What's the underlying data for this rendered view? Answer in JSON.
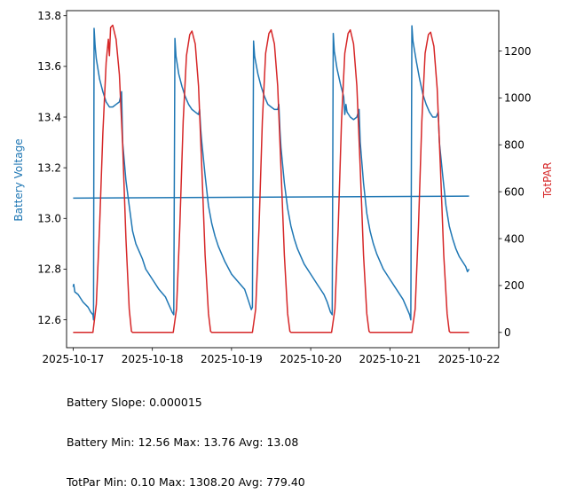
{
  "chart_data": {
    "type": "line",
    "x_axis": {
      "ticks": [
        "2025-10-17",
        "2025-10-18",
        "2025-10-19",
        "2025-10-20",
        "2025-10-21",
        "2025-10-22"
      ],
      "xlim": [
        "2025-10-16T22:00",
        "2025-10-22T09:00"
      ]
    },
    "y_left": {
      "label": "Battery Voltage",
      "color": "#1f77b4",
      "ylim": [
        12.49,
        13.82
      ],
      "ticks": [
        12.6,
        12.8,
        13.0,
        13.2,
        13.4,
        13.6,
        13.8
      ]
    },
    "y_right": {
      "label": "TotPAR",
      "color": "#d62728",
      "ylim": [
        -65,
        1372
      ],
      "ticks": [
        0,
        200,
        400,
        600,
        800,
        1000,
        1200
      ]
    },
    "battery_series": {
      "axis": "left",
      "color": "#1f77b4",
      "points": [
        [
          "2025-10-17T00:00",
          12.73
        ],
        [
          "2025-10-17T00:10",
          12.74
        ],
        [
          "2025-10-17T00:30",
          12.71
        ],
        [
          "2025-10-17T01:30",
          12.7
        ],
        [
          "2025-10-17T03:00",
          12.67
        ],
        [
          "2025-10-17T04:30",
          12.65
        ],
        [
          "2025-10-17T05:20",
          12.63
        ],
        [
          "2025-10-17T06:00",
          12.62
        ],
        [
          "2025-10-17T06:10",
          12.6
        ],
        [
          "2025-10-17T06:20",
          13.75
        ],
        [
          "2025-10-17T06:40",
          13.68
        ],
        [
          "2025-10-17T07:00",
          13.63
        ],
        [
          "2025-10-17T08:00",
          13.55
        ],
        [
          "2025-10-17T09:00",
          13.5
        ],
        [
          "2025-10-17T10:00",
          13.46
        ],
        [
          "2025-10-17T11:00",
          13.44
        ],
        [
          "2025-10-17T12:00",
          13.44
        ],
        [
          "2025-10-17T13:00",
          13.45
        ],
        [
          "2025-10-17T14:00",
          13.46
        ],
        [
          "2025-10-17T14:40",
          13.5
        ],
        [
          "2025-10-17T15:00",
          13.3
        ],
        [
          "2025-10-17T16:00",
          13.15
        ],
        [
          "2025-10-17T17:00",
          13.05
        ],
        [
          "2025-10-17T18:00",
          12.95
        ],
        [
          "2025-10-17T19:00",
          12.9
        ],
        [
          "2025-10-17T20:00",
          12.87
        ],
        [
          "2025-10-17T21:00",
          12.84
        ],
        [
          "2025-10-17T22:00",
          12.8
        ],
        [
          "2025-10-18T00:00",
          12.76
        ],
        [
          "2025-10-18T02:00",
          12.72
        ],
        [
          "2025-10-18T04:00",
          12.69
        ],
        [
          "2025-10-18T05:00",
          12.66
        ],
        [
          "2025-10-18T06:00",
          12.63
        ],
        [
          "2025-10-18T06:30",
          12.62
        ],
        [
          "2025-10-18T06:50",
          13.71
        ],
        [
          "2025-10-18T07:10",
          13.64
        ],
        [
          "2025-10-18T08:00",
          13.57
        ],
        [
          "2025-10-18T09:00",
          13.52
        ],
        [
          "2025-10-18T10:00",
          13.48
        ],
        [
          "2025-10-18T11:00",
          13.45
        ],
        [
          "2025-10-18T12:00",
          13.43
        ],
        [
          "2025-10-18T13:00",
          13.42
        ],
        [
          "2025-10-18T14:00",
          13.41
        ],
        [
          "2025-10-18T14:20",
          13.43
        ],
        [
          "2025-10-18T14:40",
          13.35
        ],
        [
          "2025-10-18T15:00",
          13.3
        ],
        [
          "2025-10-18T16:00",
          13.17
        ],
        [
          "2025-10-18T17:00",
          13.05
        ],
        [
          "2025-10-18T18:00",
          12.98
        ],
        [
          "2025-10-18T19:00",
          12.93
        ],
        [
          "2025-10-18T20:00",
          12.89
        ],
        [
          "2025-10-18T22:00",
          12.83
        ],
        [
          "2025-10-19T00:00",
          12.78
        ],
        [
          "2025-10-19T02:00",
          12.75
        ],
        [
          "2025-10-19T04:00",
          12.72
        ],
        [
          "2025-10-19T05:00",
          12.68
        ],
        [
          "2025-10-19T06:00",
          12.64
        ],
        [
          "2025-10-19T06:20",
          12.65
        ],
        [
          "2025-10-19T06:40",
          13.7
        ],
        [
          "2025-10-19T07:00",
          13.64
        ],
        [
          "2025-10-19T08:00",
          13.57
        ],
        [
          "2025-10-19T09:00",
          13.52
        ],
        [
          "2025-10-19T10:00",
          13.48
        ],
        [
          "2025-10-19T11:00",
          13.45
        ],
        [
          "2025-10-19T12:00",
          13.44
        ],
        [
          "2025-10-19T13:00",
          13.43
        ],
        [
          "2025-10-19T14:00",
          13.43
        ],
        [
          "2025-10-19T14:20",
          13.45
        ],
        [
          "2025-10-19T14:40",
          13.35
        ],
        [
          "2025-10-19T15:00",
          13.28
        ],
        [
          "2025-10-19T16:00",
          13.14
        ],
        [
          "2025-10-19T17:00",
          13.04
        ],
        [
          "2025-10-19T18:00",
          12.97
        ],
        [
          "2025-10-19T19:00",
          12.92
        ],
        [
          "2025-10-19T20:00",
          12.88
        ],
        [
          "2025-10-19T22:00",
          12.82
        ],
        [
          "2025-10-20T00:00",
          12.78
        ],
        [
          "2025-10-20T02:00",
          12.74
        ],
        [
          "2025-10-20T04:00",
          12.7
        ],
        [
          "2025-10-20T05:00",
          12.67
        ],
        [
          "2025-10-20T06:00",
          12.63
        ],
        [
          "2025-10-20T06:30",
          12.62
        ],
        [
          "2025-10-20T06:50",
          13.73
        ],
        [
          "2025-10-20T07:10",
          13.66
        ],
        [
          "2025-10-20T08:00",
          13.59
        ],
        [
          "2025-10-20T09:00",
          13.53
        ],
        [
          "2025-10-20T10:00",
          13.48
        ],
        [
          "2025-10-20T10:20",
          13.41
        ],
        [
          "2025-10-20T10:40",
          13.45
        ],
        [
          "2025-10-20T11:00",
          13.42
        ],
        [
          "2025-10-20T12:00",
          13.4
        ],
        [
          "2025-10-20T13:00",
          13.39
        ],
        [
          "2025-10-20T14:00",
          13.4
        ],
        [
          "2025-10-20T14:40",
          13.43
        ],
        [
          "2025-10-20T15:00",
          13.3
        ],
        [
          "2025-10-20T16:00",
          13.14
        ],
        [
          "2025-10-20T17:00",
          13.02
        ],
        [
          "2025-10-20T18:00",
          12.95
        ],
        [
          "2025-10-20T19:00",
          12.9
        ],
        [
          "2025-10-20T20:00",
          12.86
        ],
        [
          "2025-10-20T22:00",
          12.8
        ],
        [
          "2025-10-21T00:00",
          12.76
        ],
        [
          "2025-10-21T02:00",
          12.72
        ],
        [
          "2025-10-21T04:00",
          12.68
        ],
        [
          "2025-10-21T05:00",
          12.65
        ],
        [
          "2025-10-21T06:00",
          12.62
        ],
        [
          "2025-10-21T06:20",
          12.6
        ],
        [
          "2025-10-21T06:40",
          13.76
        ],
        [
          "2025-10-21T07:00",
          13.7
        ],
        [
          "2025-10-21T08:00",
          13.62
        ],
        [
          "2025-10-21T09:00",
          13.55
        ],
        [
          "2025-10-21T10:00",
          13.49
        ],
        [
          "2025-10-21T11:00",
          13.45
        ],
        [
          "2025-10-21T12:00",
          13.42
        ],
        [
          "2025-10-21T13:00",
          13.4
        ],
        [
          "2025-10-21T14:00",
          13.4
        ],
        [
          "2025-10-21T14:40",
          13.42
        ],
        [
          "2025-10-21T15:00",
          13.3
        ],
        [
          "2025-10-21T16:00",
          13.17
        ],
        [
          "2025-10-21T17:00",
          13.05
        ],
        [
          "2025-10-21T18:00",
          12.97
        ],
        [
          "2025-10-21T19:00",
          12.92
        ],
        [
          "2025-10-21T20:00",
          12.88
        ],
        [
          "2025-10-21T21:00",
          12.85
        ],
        [
          "2025-10-21T22:00",
          12.83
        ],
        [
          "2025-10-21T23:00",
          12.81
        ],
        [
          "2025-10-21T23:30",
          12.79
        ],
        [
          "2025-10-22T00:00",
          12.8
        ]
      ]
    },
    "battery_trend": {
      "axis": "left",
      "color": "#1f77b4",
      "points": [
        [
          "2025-10-17T00:00",
          13.08
        ],
        [
          "2025-10-22T00:00",
          13.088
        ]
      ]
    },
    "totpar_series": {
      "axis": "right",
      "color": "#d62728",
      "points": [
        [
          "2025-10-17T00:00",
          0
        ],
        [
          "2025-10-17T06:00",
          0
        ],
        [
          "2025-10-17T07:00",
          120
        ],
        [
          "2025-10-17T08:00",
          450
        ],
        [
          "2025-10-17T09:00",
          850
        ],
        [
          "2025-10-17T10:00",
          1150
        ],
        [
          "2025-10-17T10:20",
          1200
        ],
        [
          "2025-10-17T10:40",
          1250
        ],
        [
          "2025-10-17T11:00",
          1180
        ],
        [
          "2025-10-17T11:20",
          1300
        ],
        [
          "2025-10-17T12:00",
          1310
        ],
        [
          "2025-10-17T13:00",
          1250
        ],
        [
          "2025-10-17T14:00",
          1100
        ],
        [
          "2025-10-17T15:00",
          800
        ],
        [
          "2025-10-17T16:00",
          400
        ],
        [
          "2025-10-17T17:00",
          100
        ],
        [
          "2025-10-17T17:40",
          5
        ],
        [
          "2025-10-17T18:00",
          0
        ],
        [
          "2025-10-18T06:20",
          0
        ],
        [
          "2025-10-18T07:20",
          100
        ],
        [
          "2025-10-18T08:20",
          450
        ],
        [
          "2025-10-18T09:20",
          900
        ],
        [
          "2025-10-18T10:20",
          1180
        ],
        [
          "2025-10-18T11:20",
          1270
        ],
        [
          "2025-10-18T12:00",
          1285
        ],
        [
          "2025-10-18T13:00",
          1230
        ],
        [
          "2025-10-18T14:00",
          1050
        ],
        [
          "2025-10-18T15:00",
          700
        ],
        [
          "2025-10-18T16:00",
          330
        ],
        [
          "2025-10-18T17:00",
          80
        ],
        [
          "2025-10-18T17:40",
          5
        ],
        [
          "2025-10-18T18:00",
          0
        ],
        [
          "2025-10-19T06:20",
          0
        ],
        [
          "2025-10-19T07:20",
          100
        ],
        [
          "2025-10-19T08:20",
          450
        ],
        [
          "2025-10-19T09:20",
          900
        ],
        [
          "2025-10-19T10:20",
          1190
        ],
        [
          "2025-10-19T11:20",
          1275
        ],
        [
          "2025-10-19T12:00",
          1290
        ],
        [
          "2025-10-19T13:00",
          1230
        ],
        [
          "2025-10-19T14:00",
          1050
        ],
        [
          "2025-10-19T15:00",
          700
        ],
        [
          "2025-10-19T16:00",
          330
        ],
        [
          "2025-10-19T17:00",
          80
        ],
        [
          "2025-10-19T17:40",
          5
        ],
        [
          "2025-10-19T18:00",
          0
        ],
        [
          "2025-10-20T06:20",
          0
        ],
        [
          "2025-10-20T07:20",
          100
        ],
        [
          "2025-10-20T08:20",
          450
        ],
        [
          "2025-10-20T09:20",
          900
        ],
        [
          "2025-10-20T10:20",
          1190
        ],
        [
          "2025-10-20T11:20",
          1275
        ],
        [
          "2025-10-20T12:00",
          1290
        ],
        [
          "2025-10-20T13:00",
          1230
        ],
        [
          "2025-10-20T14:00",
          1050
        ],
        [
          "2025-10-20T15:00",
          700
        ],
        [
          "2025-10-20T16:00",
          330
        ],
        [
          "2025-10-20T17:00",
          80
        ],
        [
          "2025-10-20T17:40",
          5
        ],
        [
          "2025-10-20T18:00",
          0
        ],
        [
          "2025-10-21T06:40",
          0
        ],
        [
          "2025-10-21T07:40",
          100
        ],
        [
          "2025-10-21T08:40",
          450
        ],
        [
          "2025-10-21T09:40",
          900
        ],
        [
          "2025-10-21T10:40",
          1190
        ],
        [
          "2025-10-21T11:40",
          1270
        ],
        [
          "2025-10-21T12:20",
          1280
        ],
        [
          "2025-10-21T13:20",
          1220
        ],
        [
          "2025-10-21T14:20",
          1040
        ],
        [
          "2025-10-21T15:20",
          700
        ],
        [
          "2025-10-21T16:20",
          330
        ],
        [
          "2025-10-21T17:20",
          80
        ],
        [
          "2025-10-21T18:00",
          5
        ],
        [
          "2025-10-21T18:20",
          0
        ],
        [
          "2025-10-22T00:00",
          0
        ]
      ]
    }
  },
  "stats": {
    "slope": "Battery Slope: 0.000015",
    "battery": "Battery Min: 12.56 Max: 13.76 Avg: 13.08",
    "totpar": "TotPar Min: 0.10 Max: 1308.20 Avg: 779.40"
  }
}
